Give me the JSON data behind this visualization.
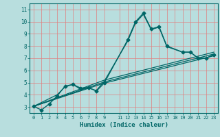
{
  "bg_color": "#b8dede",
  "grid_color": "#e08080",
  "line_color": "#006666",
  "xlabel": "Humidex (Indice chaleur)",
  "xlim": [
    -0.5,
    23.5
  ],
  "ylim": [
    2.5,
    11.5
  ],
  "yticks": [
    3,
    4,
    5,
    6,
    7,
    8,
    9,
    10,
    11
  ],
  "xticks": [
    0,
    1,
    2,
    3,
    4,
    5,
    6,
    7,
    8,
    9,
    11,
    12,
    13,
    14,
    15,
    16,
    17,
    18,
    19,
    20,
    21,
    22,
    23
  ],
  "series": [
    {
      "x": [
        0,
        1,
        2,
        3,
        4,
        5,
        6,
        7,
        8,
        9,
        12,
        13,
        14,
        15,
        16,
        17,
        19,
        20,
        21,
        22,
        23
      ],
      "y": [
        3.05,
        2.75,
        3.25,
        3.9,
        4.7,
        4.85,
        4.55,
        4.6,
        4.3,
        4.95,
        8.5,
        10.0,
        10.7,
        9.4,
        9.6,
        8.0,
        7.5,
        7.5,
        7.0,
        7.0,
        7.3
      ],
      "marker": "D",
      "markersize": 2.5,
      "linewidth": 1.0
    },
    {
      "x": [
        0,
        3,
        4,
        5,
        6,
        7,
        8,
        9,
        12,
        13,
        14,
        15,
        16,
        17,
        19,
        20,
        21,
        22,
        23
      ],
      "y": [
        3.05,
        4.0,
        4.65,
        4.85,
        4.45,
        4.55,
        4.35,
        5.1,
        8.4,
        9.9,
        10.6,
        9.35,
        9.55,
        7.95,
        7.5,
        7.5,
        7.0,
        7.0,
        7.3
      ],
      "marker": null,
      "linewidth": 0.9
    },
    {
      "x": [
        0,
        9,
        23
      ],
      "y": [
        3.05,
        4.95,
        7.2
      ],
      "marker": null,
      "linewidth": 0.9
    },
    {
      "x": [
        0,
        9,
        23
      ],
      "y": [
        3.05,
        5.05,
        7.35
      ],
      "marker": null,
      "linewidth": 0.9
    },
    {
      "x": [
        0,
        9,
        23
      ],
      "y": [
        3.05,
        5.2,
        7.5
      ],
      "marker": null,
      "linewidth": 0.9
    }
  ]
}
